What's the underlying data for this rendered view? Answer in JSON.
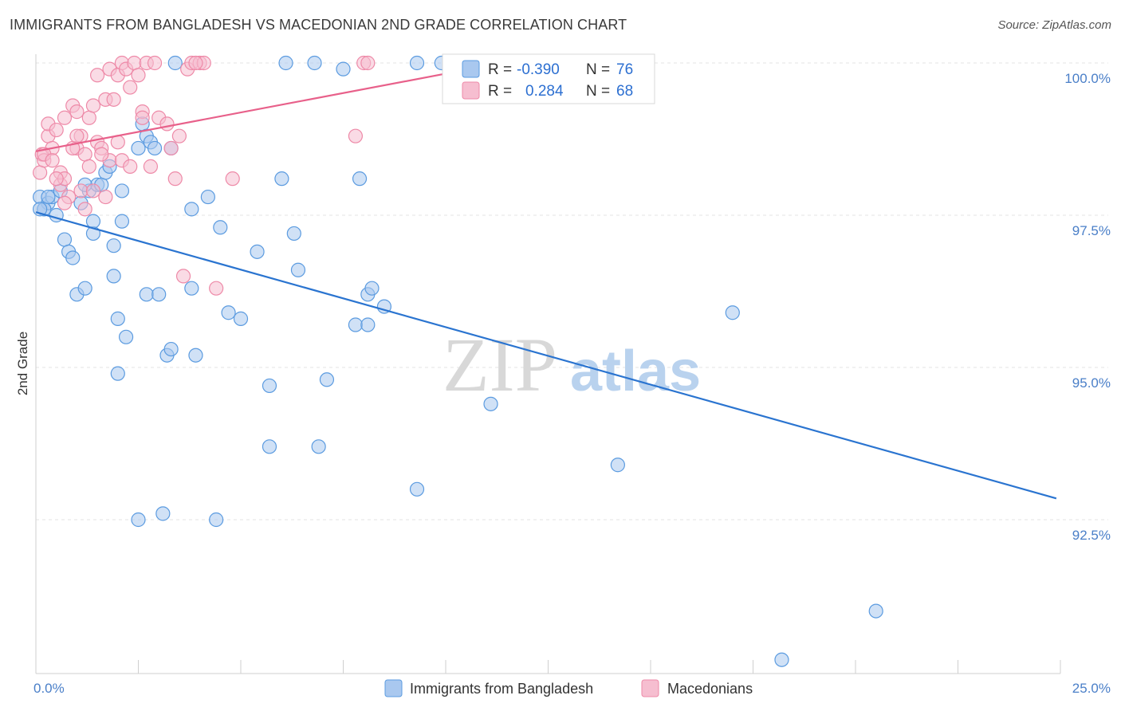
{
  "title": "IMMIGRANTS FROM BANGLADESH VS MACEDONIAN 2ND GRADE CORRELATION CHART",
  "source": "Source: ZipAtlas.com",
  "colors": {
    "blue": "#5b9be0",
    "blue_fill": "#a9c8ef",
    "blue_line": "#2a74d0",
    "pink": "#ee8aa8",
    "pink_fill": "#f6bed0",
    "pink_line": "#e8608a",
    "axis_text": "#4a7fc8"
  },
  "chart_data": {
    "type": "scatter",
    "title": "IMMIGRANTS FROM BANGLADESH VS MACEDONIAN 2ND GRADE CORRELATION CHART",
    "xlabel": "",
    "ylabel": "2nd Grade",
    "xlim": [
      0,
      25
    ],
    "ylim": [
      90.0,
      100.2
    ],
    "x_tick_labels": [
      "0.0%",
      "25.0%"
    ],
    "y_ticks": [
      92.5,
      95.0,
      97.5,
      100.0
    ],
    "y_tick_labels": [
      "92.5%",
      "95.0%",
      "97.5%",
      "100.0%"
    ],
    "watermark": {
      "zip": "ZIP",
      "atlas": "atlas"
    },
    "legend": {
      "r_label": "R =",
      "n_label": "N =",
      "rows": [
        {
          "r": "-0.390",
          "n": "76"
        },
        {
          "r": "0.284",
          "n": "68"
        }
      ]
    },
    "series": [
      {
        "name": "Immigrants from Bangladesh",
        "color": "blue",
        "trend": {
          "x": [
            0.0,
            24.9
          ],
          "y": [
            97.55,
            92.85
          ]
        },
        "points": [
          [
            0.1,
            97.8
          ],
          [
            0.2,
            97.6
          ],
          [
            0.3,
            97.7
          ],
          [
            0.4,
            97.8
          ],
          [
            0.5,
            97.5
          ],
          [
            0.6,
            97.9
          ],
          [
            0.7,
            97.1
          ],
          [
            0.8,
            96.9
          ],
          [
            0.9,
            96.8
          ],
          [
            1.1,
            97.7
          ],
          [
            1.0,
            96.2
          ],
          [
            1.2,
            96.3
          ],
          [
            1.3,
            97.9
          ],
          [
            1.4,
            97.2
          ],
          [
            1.4,
            97.4
          ],
          [
            1.5,
            98.0
          ],
          [
            1.6,
            98.0
          ],
          [
            1.7,
            98.2
          ],
          [
            1.8,
            98.3
          ],
          [
            1.9,
            96.5
          ],
          [
            1.9,
            97.0
          ],
          [
            2.1,
            97.4
          ],
          [
            2.1,
            97.9
          ],
          [
            2.0,
            95.8
          ],
          [
            2.2,
            95.5
          ],
          [
            2.0,
            94.9
          ],
          [
            2.5,
            92.5
          ],
          [
            2.5,
            98.6
          ],
          [
            2.6,
            99.0
          ],
          [
            2.7,
            96.2
          ],
          [
            2.7,
            98.8
          ],
          [
            2.8,
            98.7
          ],
          [
            2.9,
            98.6
          ],
          [
            3.0,
            96.2
          ],
          [
            3.2,
            95.2
          ],
          [
            3.3,
            95.3
          ],
          [
            3.3,
            98.6
          ],
          [
            3.4,
            100.0
          ],
          [
            3.8,
            96.3
          ],
          [
            3.8,
            97.6
          ],
          [
            3.9,
            95.2
          ],
          [
            4.2,
            97.8
          ],
          [
            4.5,
            97.3
          ],
          [
            4.7,
            95.9
          ],
          [
            5.0,
            95.8
          ],
          [
            5.4,
            96.9
          ],
          [
            5.7,
            94.7
          ],
          [
            5.7,
            93.7
          ],
          [
            6.0,
            98.1
          ],
          [
            6.1,
            100.0
          ],
          [
            6.3,
            97.2
          ],
          [
            6.4,
            96.6
          ],
          [
            6.8,
            100.0
          ],
          [
            6.9,
            93.7
          ],
          [
            7.1,
            94.8
          ],
          [
            7.5,
            99.9
          ],
          [
            7.8,
            95.7
          ],
          [
            7.9,
            98.1
          ],
          [
            8.1,
            95.7
          ],
          [
            8.1,
            96.2
          ],
          [
            8.2,
            96.3
          ],
          [
            8.5,
            96.0
          ],
          [
            9.3,
            100.0
          ],
          [
            9.3,
            93.0
          ],
          [
            9.9,
            100.0
          ],
          [
            11.1,
            94.4
          ],
          [
            14.2,
            93.4
          ],
          [
            17.0,
            95.9
          ],
          [
            18.2,
            90.2
          ],
          [
            20.5,
            91.0
          ],
          [
            0.2,
            97.6
          ],
          [
            0.3,
            97.8
          ],
          [
            1.2,
            98.0
          ],
          [
            3.1,
            92.6
          ],
          [
            4.4,
            92.5
          ],
          [
            0.1,
            97.6
          ]
        ]
      },
      {
        "name": "Macedonians",
        "color": "pink",
        "trend": {
          "x": [
            0.0,
            10.2
          ],
          "y": [
            98.55,
            99.85
          ]
        },
        "points": [
          [
            0.1,
            98.2
          ],
          [
            0.15,
            98.5
          ],
          [
            0.2,
            98.4
          ],
          [
            0.3,
            98.8
          ],
          [
            0.3,
            99.0
          ],
          [
            0.4,
            98.6
          ],
          [
            0.5,
            98.9
          ],
          [
            0.6,
            98.0
          ],
          [
            0.6,
            98.2
          ],
          [
            0.7,
            98.1
          ],
          [
            0.7,
            99.1
          ],
          [
            0.8,
            97.8
          ],
          [
            0.9,
            99.3
          ],
          [
            1.0,
            98.6
          ],
          [
            1.0,
            99.2
          ],
          [
            1.1,
            97.9
          ],
          [
            1.1,
            98.8
          ],
          [
            1.2,
            97.6
          ],
          [
            1.2,
            98.5
          ],
          [
            1.3,
            98.3
          ],
          [
            1.3,
            99.1
          ],
          [
            1.4,
            99.3
          ],
          [
            1.5,
            98.7
          ],
          [
            1.5,
            99.8
          ],
          [
            1.6,
            98.6
          ],
          [
            1.7,
            99.4
          ],
          [
            1.7,
            97.8
          ],
          [
            1.8,
            98.4
          ],
          [
            1.8,
            99.9
          ],
          [
            1.9,
            99.4
          ],
          [
            2.0,
            99.8
          ],
          [
            2.0,
            98.7
          ],
          [
            2.1,
            98.4
          ],
          [
            2.1,
            100.0
          ],
          [
            2.2,
            99.9
          ],
          [
            2.3,
            99.6
          ],
          [
            2.4,
            100.0
          ],
          [
            2.5,
            99.8
          ],
          [
            2.6,
            99.2
          ],
          [
            2.7,
            100.0
          ],
          [
            2.8,
            98.3
          ],
          [
            2.9,
            100.0
          ],
          [
            3.0,
            99.1
          ],
          [
            3.2,
            99.0
          ],
          [
            3.4,
            98.1
          ],
          [
            3.5,
            98.8
          ],
          [
            3.6,
            96.5
          ],
          [
            3.7,
            99.9
          ],
          [
            3.8,
            100.0
          ],
          [
            4.0,
            100.0
          ],
          [
            4.1,
            100.0
          ],
          [
            4.4,
            96.3
          ],
          [
            4.8,
            98.1
          ],
          [
            7.8,
            98.8
          ],
          [
            8.0,
            100.0
          ],
          [
            8.1,
            100.0
          ],
          [
            0.2,
            98.5
          ],
          [
            0.5,
            98.1
          ],
          [
            0.9,
            98.6
          ],
          [
            1.6,
            98.5
          ],
          [
            2.3,
            98.3
          ],
          [
            3.3,
            98.6
          ],
          [
            0.7,
            97.7
          ],
          [
            1.4,
            97.9
          ],
          [
            0.4,
            98.4
          ],
          [
            1.0,
            98.8
          ],
          [
            2.6,
            99.1
          ],
          [
            3.9,
            100.0
          ]
        ]
      }
    ]
  }
}
